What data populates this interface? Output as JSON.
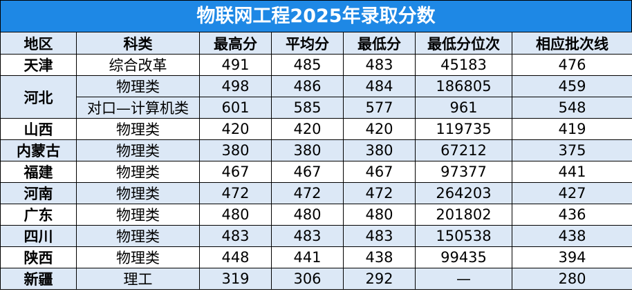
{
  "title": "物联网工程2025年录取分数",
  "table": {
    "header": [
      "地区",
      "科类",
      "最高分",
      "平均分",
      "最低分",
      "最低分位次",
      "相应批次线"
    ],
    "groups": [
      {
        "region": "天津",
        "rows": [
          [
            "综合改革",
            491,
            485,
            483,
            45183,
            476
          ]
        ]
      },
      {
        "region": "河北",
        "rows": [
          [
            "物理类",
            498,
            486,
            484,
            186805,
            459
          ],
          [
            "对口—计算机类",
            601,
            585,
            577,
            961,
            548
          ]
        ]
      },
      {
        "region": "山西",
        "rows": [
          [
            "物理类",
            420,
            420,
            420,
            119735,
            419
          ]
        ]
      },
      {
        "region": "内蒙古",
        "rows": [
          [
            "物理类",
            380,
            380,
            380,
            67212,
            375
          ]
        ]
      },
      {
        "region": "福建",
        "rows": [
          [
            "物理类",
            467,
            467,
            467,
            97377,
            441
          ]
        ]
      },
      {
        "region": "河南",
        "rows": [
          [
            "物理类",
            472,
            472,
            472,
            264203,
            427
          ]
        ]
      },
      {
        "region": "广东",
        "rows": [
          [
            "物理类",
            480,
            480,
            480,
            201802,
            436
          ]
        ]
      },
      {
        "region": "四川",
        "rows": [
          [
            "物理类",
            483,
            483,
            483,
            150538,
            438
          ]
        ]
      },
      {
        "region": "陕西",
        "rows": [
          [
            "物理类",
            448,
            441,
            438,
            99435,
            394
          ]
        ]
      },
      {
        "region": "新疆",
        "rows": [
          [
            "理工",
            319,
            306,
            292,
            "—",
            280
          ]
        ]
      }
    ]
  }
}
